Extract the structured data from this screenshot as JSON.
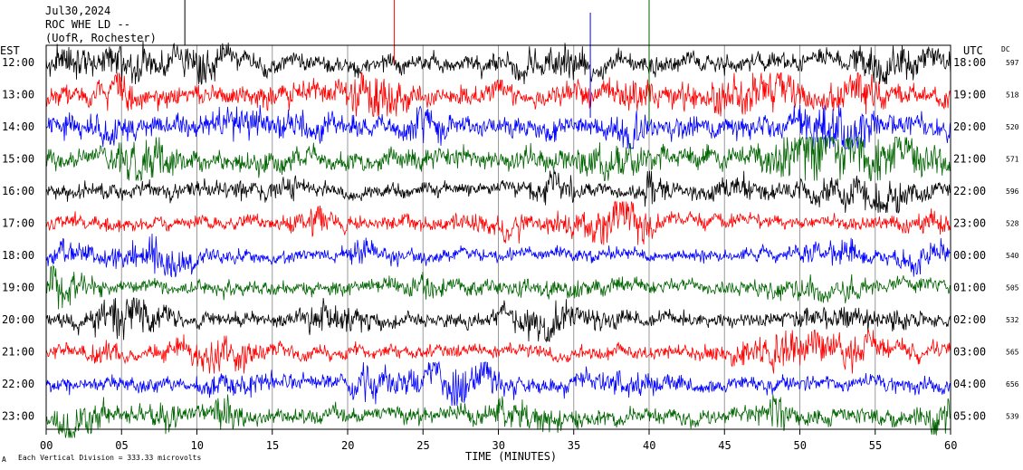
{
  "header": {
    "date": "Jul30,2024",
    "station": "ROC WHE LD --",
    "location": "(UofR, Rochester)"
  },
  "left_axis_title": "EST",
  "right_axis_title": "UTC",
  "dc_title": "DC",
  "footer_note": "Each Vertical Division =  333.33 microvolts",
  "footer_icon": "A",
  "chart_data": {
    "type": "line",
    "title": "",
    "xlabel": "TIME (MINUTES)",
    "ylabel": "",
    "xlim": [
      0,
      60
    ],
    "x_ticks": [
      "00",
      "05",
      "10",
      "15",
      "20",
      "25",
      "30",
      "35",
      "40",
      "45",
      "50",
      "55",
      "60"
    ],
    "series_colors": [
      "#000000",
      "#ff0000",
      "#0000ff",
      "#006400"
    ],
    "traces": [
      {
        "est": "12:00",
        "utc": "18:00",
        "dc": "597",
        "color": "#000000",
        "amp": 1.0
      },
      {
        "est": "13:00",
        "utc": "19:00",
        "dc": "518",
        "color": "#ff0000",
        "amp": 1.25
      },
      {
        "est": "14:00",
        "utc": "20:00",
        "dc": "520",
        "color": "#0000ff",
        "amp": 1.25
      },
      {
        "est": "15:00",
        "utc": "21:00",
        "dc": "571",
        "color": "#006400",
        "amp": 1.2
      },
      {
        "est": "16:00",
        "utc": "22:00",
        "dc": "596",
        "color": "#000000",
        "amp": 0.85
      },
      {
        "est": "17:00",
        "utc": "23:00",
        "dc": "528",
        "color": "#ff0000",
        "amp": 0.8
      },
      {
        "est": "18:00",
        "utc": "00:00",
        "dc": "540",
        "color": "#0000ff",
        "amp": 0.75
      },
      {
        "est": "19:00",
        "utc": "01:00",
        "dc": "505",
        "color": "#006400",
        "amp": 0.8
      },
      {
        "est": "20:00",
        "utc": "02:00",
        "dc": "532",
        "color": "#000000",
        "amp": 0.8
      },
      {
        "est": "21:00",
        "utc": "03:00",
        "dc": "565",
        "color": "#ff0000",
        "amp": 0.8
      },
      {
        "est": "22:00",
        "utc": "04:00",
        "dc": "656",
        "color": "#0000ff",
        "amp": 0.85
      },
      {
        "est": "23:00",
        "utc": "05:00",
        "dc": "539",
        "color": "#006400",
        "amp": 0.95
      }
    ]
  }
}
